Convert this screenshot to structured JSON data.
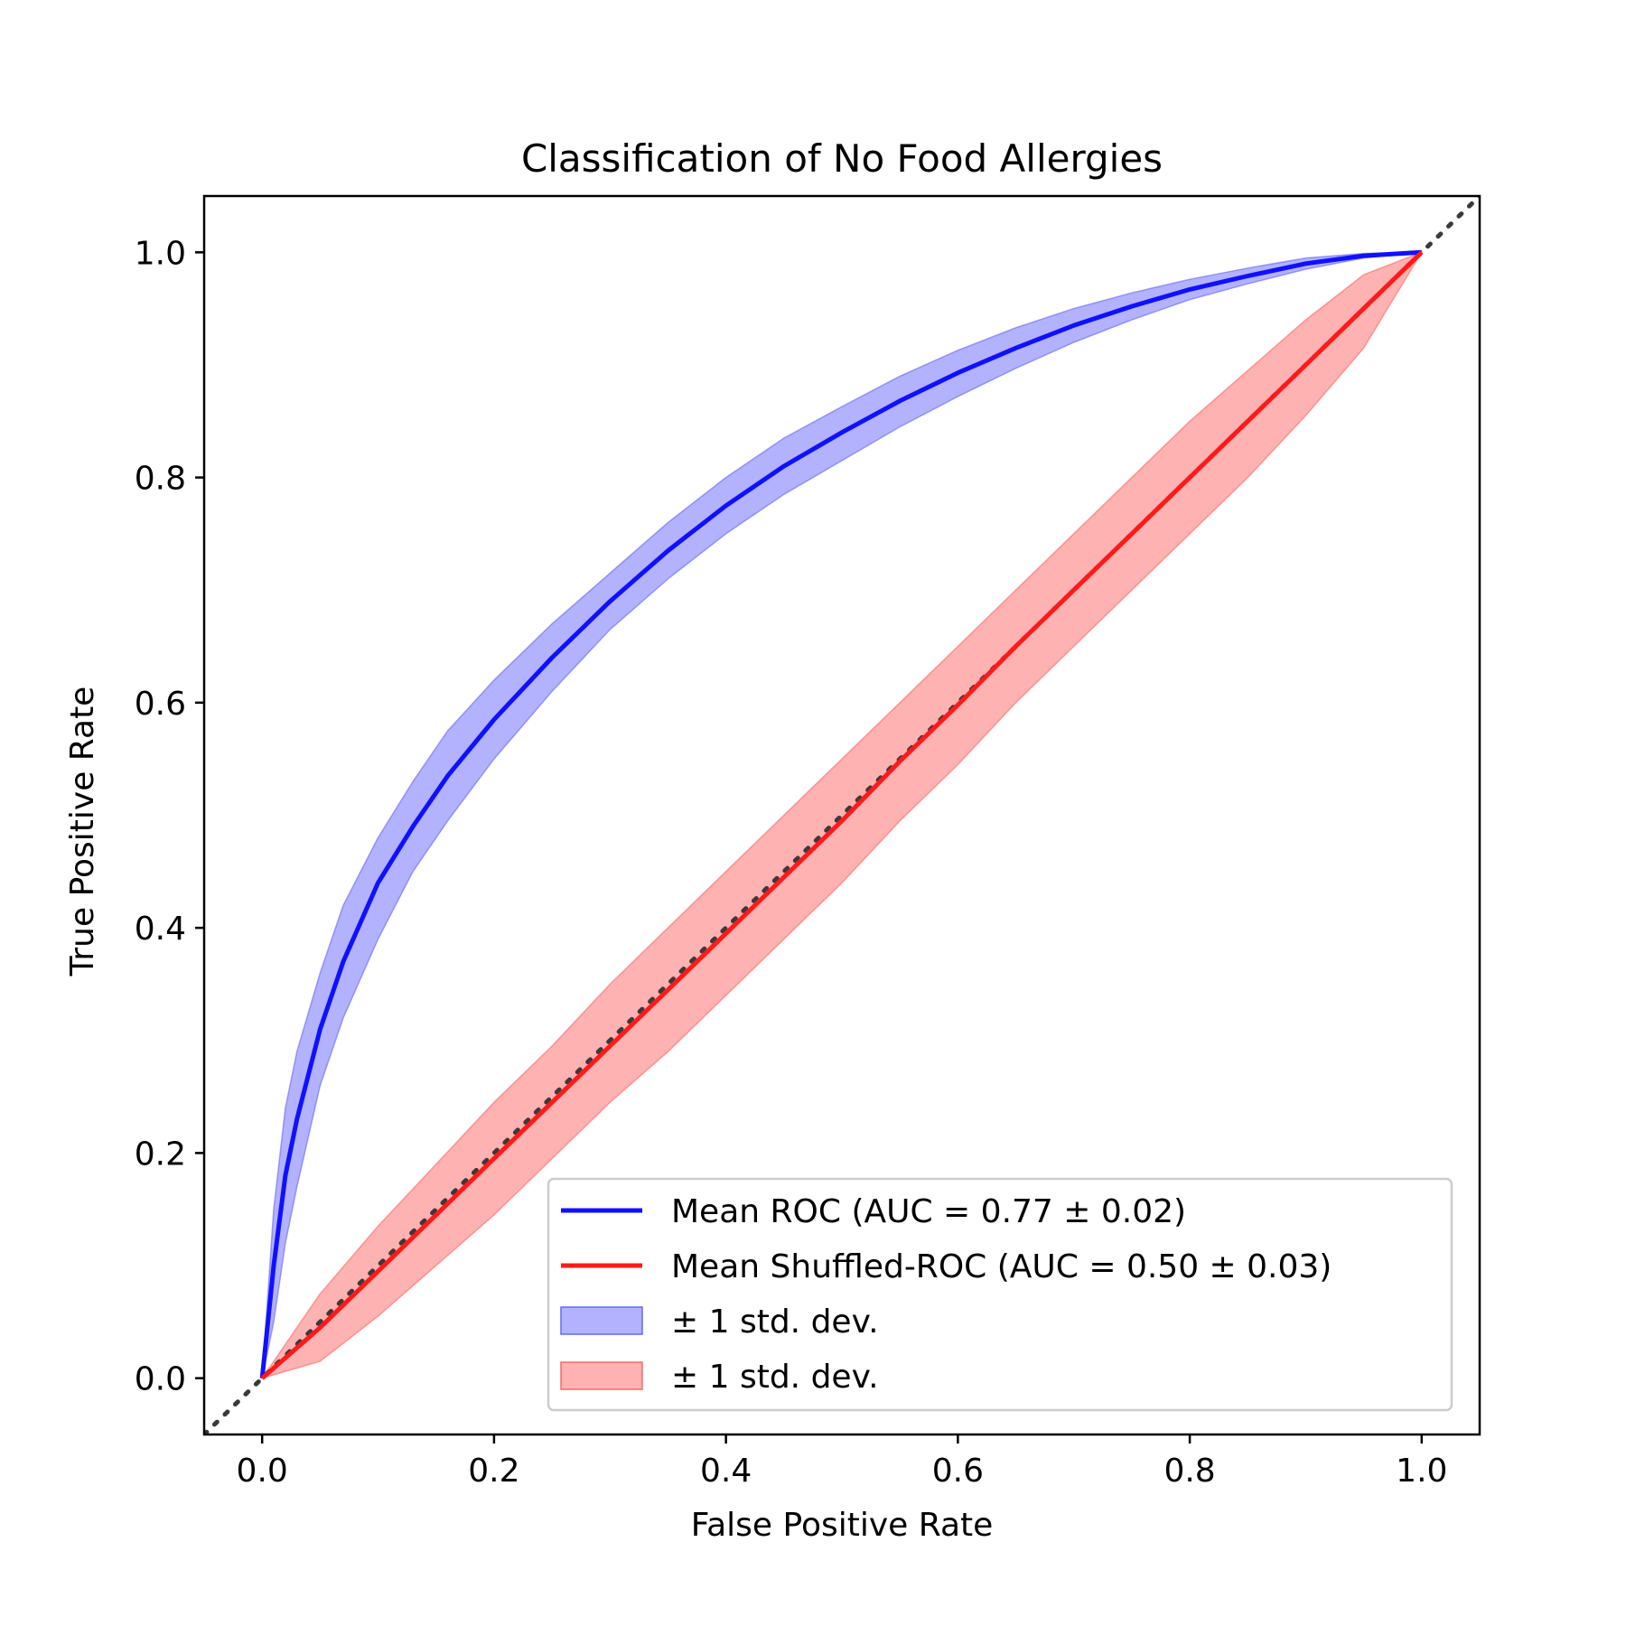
{
  "chart_data": {
    "type": "line",
    "title": "Classification of No Food Allergies",
    "xlabel": "False Positive Rate",
    "ylabel": "True Positive Rate",
    "xlim": [
      -0.05,
      1.05
    ],
    "ylim": [
      -0.05,
      1.05
    ],
    "xticks": [
      "0.0",
      "0.2",
      "0.4",
      "0.6",
      "0.8",
      "1.0"
    ],
    "yticks": [
      "0.0",
      "0.2",
      "0.4",
      "0.6",
      "0.8",
      "1.0"
    ],
    "grid": false,
    "legend_position": "lower-right",
    "colors": {
      "roc": "#1010ff",
      "roc_band": "#6666ff",
      "shuffled": "#ff1a1a",
      "shuffled_band": "#ff6666",
      "chance": "#3a3a3a"
    },
    "series": [
      {
        "name": "Mean ROC (AUC = 0.77 ± 0.02)",
        "x": [
          0,
          0.01,
          0.02,
          0.03,
          0.05,
          0.07,
          0.1,
          0.13,
          0.16,
          0.2,
          0.25,
          0.3,
          0.35,
          0.4,
          0.45,
          0.5,
          0.55,
          0.6,
          0.65,
          0.7,
          0.75,
          0.8,
          0.85,
          0.9,
          0.95,
          1.0
        ],
        "y": [
          0,
          0.1,
          0.18,
          0.23,
          0.31,
          0.37,
          0.44,
          0.49,
          0.535,
          0.585,
          0.64,
          0.69,
          0.735,
          0.775,
          0.81,
          0.84,
          0.868,
          0.893,
          0.915,
          0.935,
          0.952,
          0.967,
          0.979,
          0.99,
          0.997,
          1.0
        ]
      },
      {
        "name": "Mean Shuffled-ROC (AUC = 0.50 ± 0.03)",
        "x": [
          0,
          0.05,
          0.1,
          0.15,
          0.2,
          0.25,
          0.3,
          0.35,
          0.4,
          0.45,
          0.5,
          0.55,
          0.6,
          0.65,
          0.7,
          0.75,
          0.8,
          0.85,
          0.9,
          0.95,
          1.0
        ],
        "y": [
          0,
          0.045,
          0.095,
          0.145,
          0.195,
          0.245,
          0.295,
          0.345,
          0.395,
          0.445,
          0.495,
          0.548,
          0.598,
          0.65,
          0.7,
          0.75,
          0.8,
          0.85,
          0.9,
          0.95,
          1.0
        ]
      }
    ],
    "bands": [
      {
        "name": "± 1 std. dev.",
        "x": [
          0,
          0.01,
          0.02,
          0.03,
          0.05,
          0.07,
          0.1,
          0.13,
          0.16,
          0.2,
          0.25,
          0.3,
          0.35,
          0.4,
          0.45,
          0.5,
          0.55,
          0.6,
          0.65,
          0.7,
          0.75,
          0.8,
          0.85,
          0.9,
          0.95,
          1.0
        ],
        "upper": [
          0,
          0.15,
          0.24,
          0.29,
          0.36,
          0.42,
          0.48,
          0.53,
          0.575,
          0.62,
          0.67,
          0.715,
          0.76,
          0.8,
          0.835,
          0.863,
          0.89,
          0.913,
          0.933,
          0.95,
          0.964,
          0.976,
          0.986,
          0.995,
          0.999,
          1.0
        ],
        "lower": [
          0,
          0.05,
          0.12,
          0.17,
          0.26,
          0.32,
          0.39,
          0.45,
          0.495,
          0.55,
          0.61,
          0.665,
          0.71,
          0.75,
          0.785,
          0.815,
          0.845,
          0.872,
          0.897,
          0.92,
          0.94,
          0.958,
          0.972,
          0.985,
          0.995,
          1.0
        ]
      },
      {
        "name": "± 1 std. dev.",
        "x": [
          0,
          0.05,
          0.1,
          0.15,
          0.2,
          0.25,
          0.3,
          0.35,
          0.4,
          0.45,
          0.5,
          0.55,
          0.6,
          0.65,
          0.7,
          0.75,
          0.8,
          0.85,
          0.9,
          0.95,
          1.0
        ],
        "upper": [
          0,
          0.075,
          0.135,
          0.19,
          0.245,
          0.295,
          0.35,
          0.4,
          0.45,
          0.5,
          0.55,
          0.6,
          0.65,
          0.7,
          0.75,
          0.8,
          0.85,
          0.895,
          0.94,
          0.98,
          1.0
        ],
        "lower": [
          0,
          0.015,
          0.055,
          0.1,
          0.145,
          0.195,
          0.245,
          0.29,
          0.34,
          0.39,
          0.44,
          0.495,
          0.545,
          0.6,
          0.65,
          0.7,
          0.75,
          0.8,
          0.855,
          0.915,
          1.0
        ]
      }
    ]
  }
}
